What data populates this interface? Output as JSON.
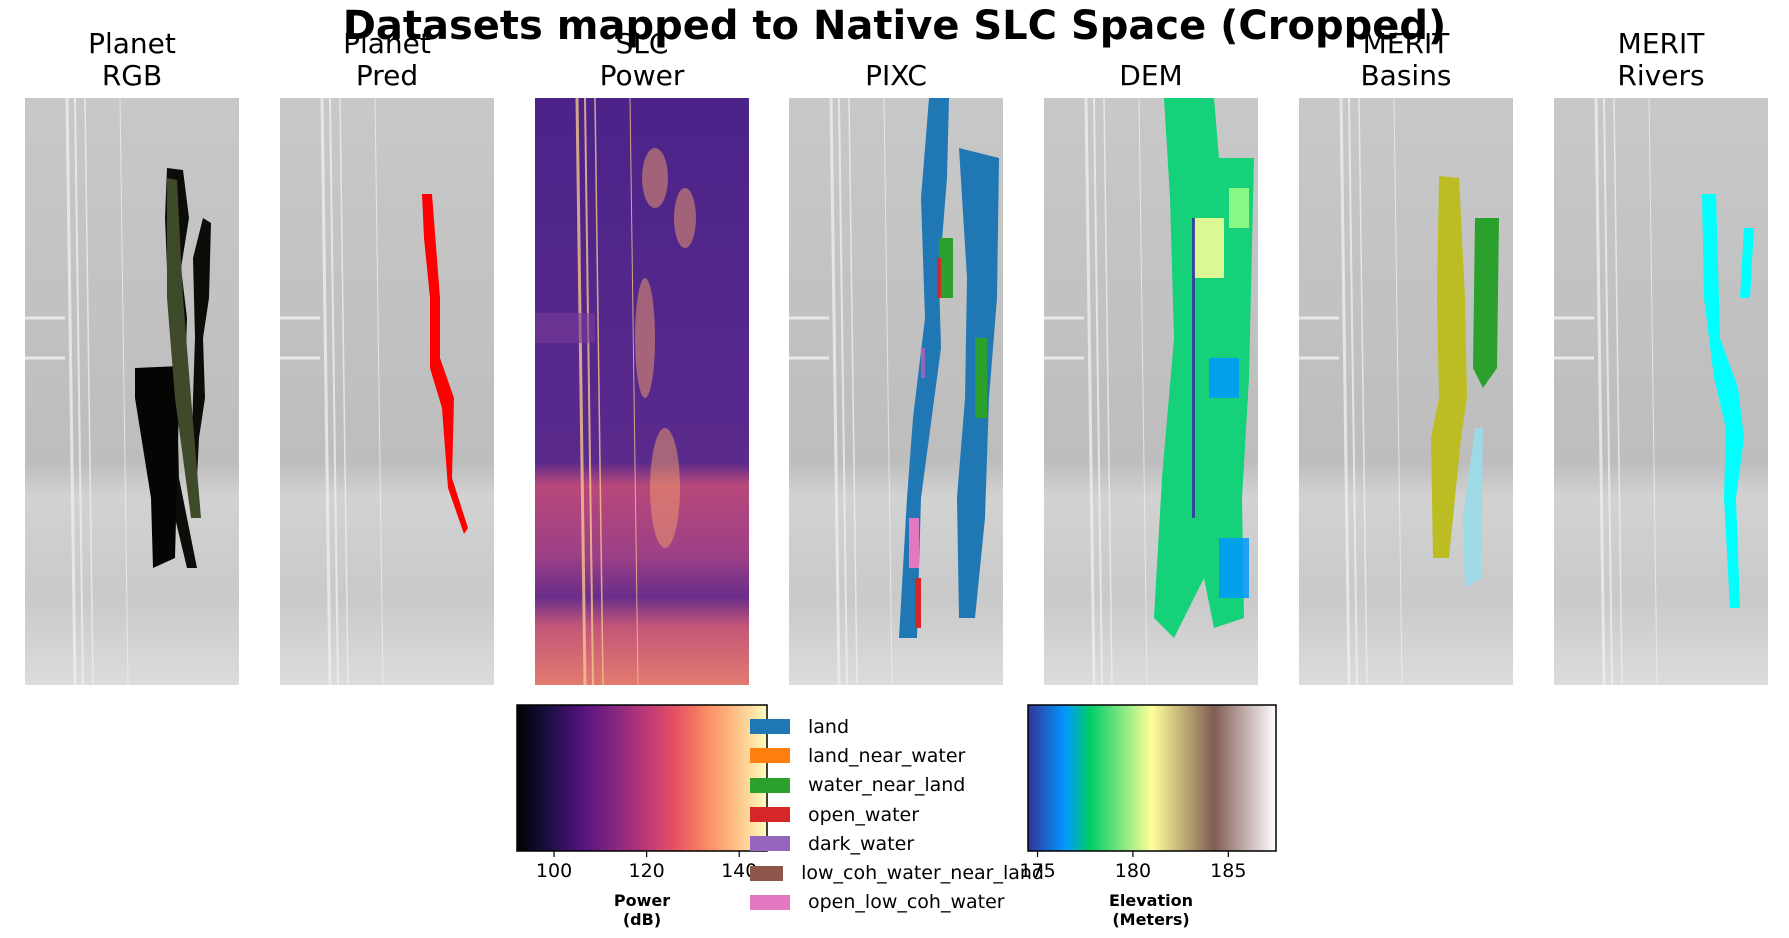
{
  "chart_data": {
    "type": "image_grid",
    "title": "Datasets mapped to Native SLC Space (Cropped)",
    "panels": [
      {
        "title_line1": "Planet",
        "title_line2": "RGB",
        "overlay": "rgb",
        "overlay_color": "#3e4a2a"
      },
      {
        "title_line1": "Planet",
        "title_line2": "Pred",
        "overlay": "pred",
        "overlay_color": "#ff0000"
      },
      {
        "title_line1": "SLC",
        "title_line2": "Power",
        "overlay": "power",
        "overlay_color": "#5a2a86"
      },
      {
        "title_line1": "PIXC",
        "title_line2": "",
        "overlay": "pixc",
        "overlay_color": "#1f77b4"
      },
      {
        "title_line1": "DEM",
        "title_line2": "",
        "overlay": "dem",
        "overlay_color": "#14d17a"
      },
      {
        "title_line1": "MERIT",
        "title_line2": "Basins",
        "overlay": "basins",
        "overlay_color": "#bcbd22"
      },
      {
        "title_line1": "MERIT",
        "title_line2": "Rivers",
        "overlay": "rivers",
        "overlay_color": "#00ffff"
      }
    ],
    "colorbars": [
      {
        "name": "power",
        "label_line1": "Power",
        "label_line2": "(dB)",
        "colormap": "magma",
        "range": [
          92,
          146
        ],
        "ticks": [
          100,
          120,
          140
        ],
        "tick_labels": [
          "100",
          "120",
          "140"
        ]
      },
      {
        "name": "elevation",
        "label_line1": "Elevation",
        "label_line2": "(Meters)",
        "colormap": "terrain",
        "range": [
          174.5,
          187.5
        ],
        "ticks": [
          175,
          180,
          185
        ],
        "tick_labels": [
          "175",
          "180",
          "185"
        ]
      }
    ],
    "legend": [
      {
        "label": "land",
        "color": "#1f77b4"
      },
      {
        "label": "land_near_water",
        "color": "#ff7f0e"
      },
      {
        "label": "water_near_land",
        "color": "#2ca02c"
      },
      {
        "label": "open_water",
        "color": "#d62728"
      },
      {
        "label": "dark_water",
        "color": "#9467bd"
      },
      {
        "label": "low_coh_water_near_land",
        "color": "#8c564b"
      },
      {
        "label": "open_low_coh_water",
        "color": "#e377c2"
      }
    ]
  }
}
